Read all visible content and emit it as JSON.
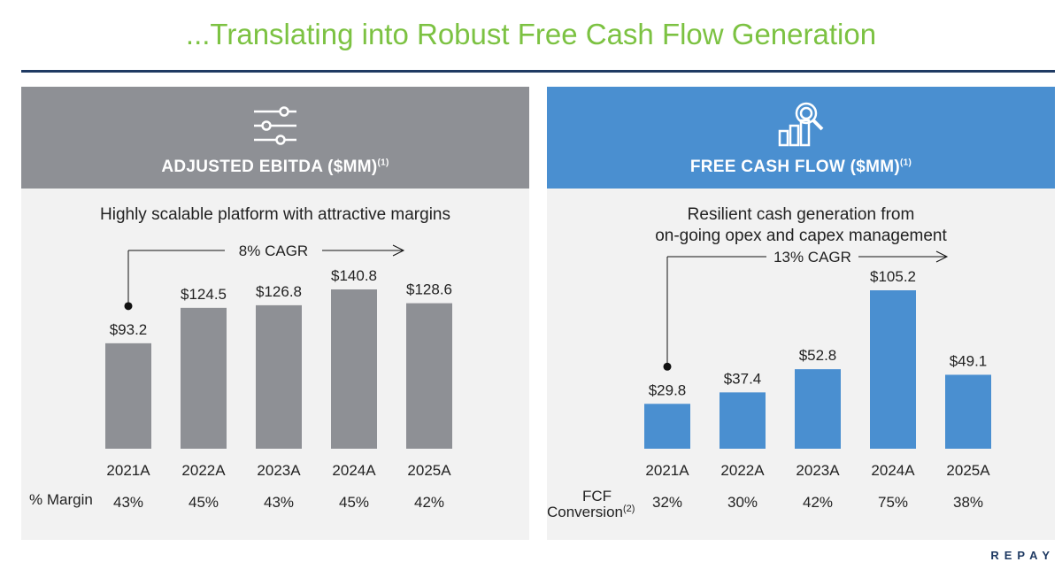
{
  "title": "...Translating into Robust Free Cash Flow Generation",
  "colors": {
    "title": "#7cc242",
    "grey_bar": "#8e9095",
    "blue_bar": "#4a8fd0",
    "rule": "#1f3a63"
  },
  "panels": {
    "ebitda": {
      "icon": "sliders-icon",
      "header": "ADJUSTED EBITDA ($MM)",
      "footnote": "(1)",
      "subtitle": "Highly scalable platform with attractive margins",
      "cagr": "8% CAGR",
      "row_label": "% Margin"
    },
    "fcf": {
      "icon": "magnifier-chart-icon",
      "header": "FREE CASH FLOW ($MM)",
      "footnote": "(1)",
      "subtitle_line1": "Resilient cash generation from",
      "subtitle_line2": "on-going opex and capex management",
      "cagr": "13% CAGR",
      "row_label_line1": "FCF",
      "row_label_line2": "Conversion",
      "row_label_footnote": "(2)"
    }
  },
  "corner_text": "REPAY",
  "chart_data": [
    {
      "type": "bar",
      "title": "ADJUSTED EBITDA ($MM)",
      "categories": [
        "2021A",
        "2022A",
        "2023A",
        "2024A",
        "2025A"
      ],
      "values": [
        93.2,
        124.5,
        126.8,
        140.8,
        128.6
      ],
      "labels": [
        "$93.2",
        "$124.5",
        "$126.8",
        "$140.8",
        "$128.6"
      ],
      "margins": [
        "43%",
        "45%",
        "43%",
        "45%",
        "42%"
      ],
      "cagr": "8% CAGR",
      "ylim": [
        0,
        140.8
      ],
      "color": "#8e9095"
    },
    {
      "type": "bar",
      "title": "FREE CASH FLOW ($MM)",
      "categories": [
        "2021A",
        "2022A",
        "2023A",
        "2024A",
        "2025A"
      ],
      "values": [
        29.8,
        37.4,
        52.8,
        105.2,
        49.1
      ],
      "labels": [
        "$29.8",
        "$37.4",
        "$52.8",
        "$105.2",
        "$49.1"
      ],
      "conversion": [
        "32%",
        "30%",
        "42%",
        "75%",
        "38%"
      ],
      "cagr": "13% CAGR",
      "ylim": [
        0,
        105.2
      ],
      "color": "#4a8fd0"
    }
  ]
}
